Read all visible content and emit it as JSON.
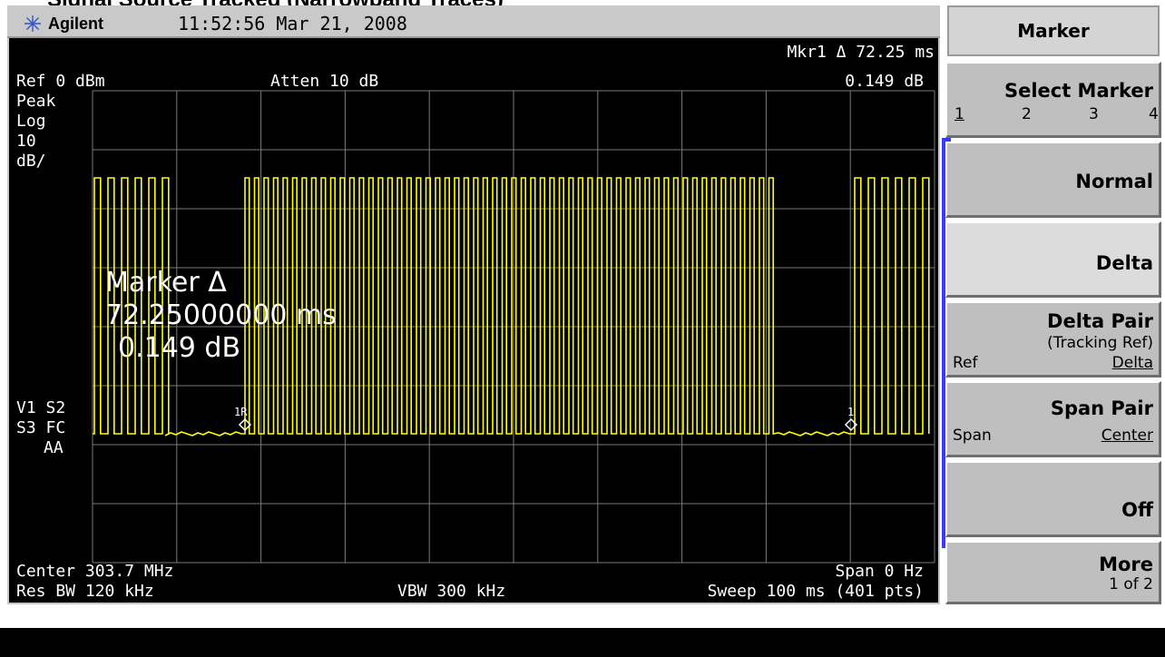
{
  "caption": "Signal Source Tracked (Narrowband Traces)",
  "header": {
    "brand": "Agilent",
    "datetime": "11:52:56  Mar 21, 2008"
  },
  "readout": {
    "marker_line": "Mkr1 Δ   72.25 ms",
    "marker_value": "0.149 dB",
    "ref": "Ref 0 dBm",
    "atten": "Atten 10 dB",
    "detector": "Peak",
    "scale_type": "Log",
    "scale_num": "10",
    "scale_unit": "dB/",
    "status1": "V1  S2",
    "status2": "S3  FC",
    "status3": "AA",
    "center": "Center 303.7 MHz",
    "span": "Span 0 Hz",
    "res_bw": "Res BW 120 kHz",
    "vbw": "VBW 300 kHz",
    "sweep": "Sweep 100 ms (401 pts)"
  },
  "marker_box": {
    "title": "Marker Δ",
    "time": "72.25000000 ms",
    "value": "0.149 dB"
  },
  "markers": [
    {
      "label": "1R"
    },
    {
      "label": "1"
    }
  ],
  "softkeys": {
    "title": "Marker",
    "select_marker": {
      "label": "Select Marker",
      "options": [
        "1",
        "2",
        "3",
        "4"
      ]
    },
    "normal": "Normal",
    "delta": "Delta",
    "delta_pair": {
      "label": "Delta Pair",
      "sub": "(Tracking Ref)",
      "left": "Ref",
      "right": "Delta"
    },
    "span_pair": {
      "label": "Span Pair",
      "left": "Span",
      "right": "Center"
    },
    "off": "Off",
    "more": {
      "label": "More",
      "sub": "1 of 2"
    }
  },
  "colors": {
    "trace": "#ffff00",
    "grid": "#7a7a7a",
    "bracket": "#3a3aff"
  }
}
